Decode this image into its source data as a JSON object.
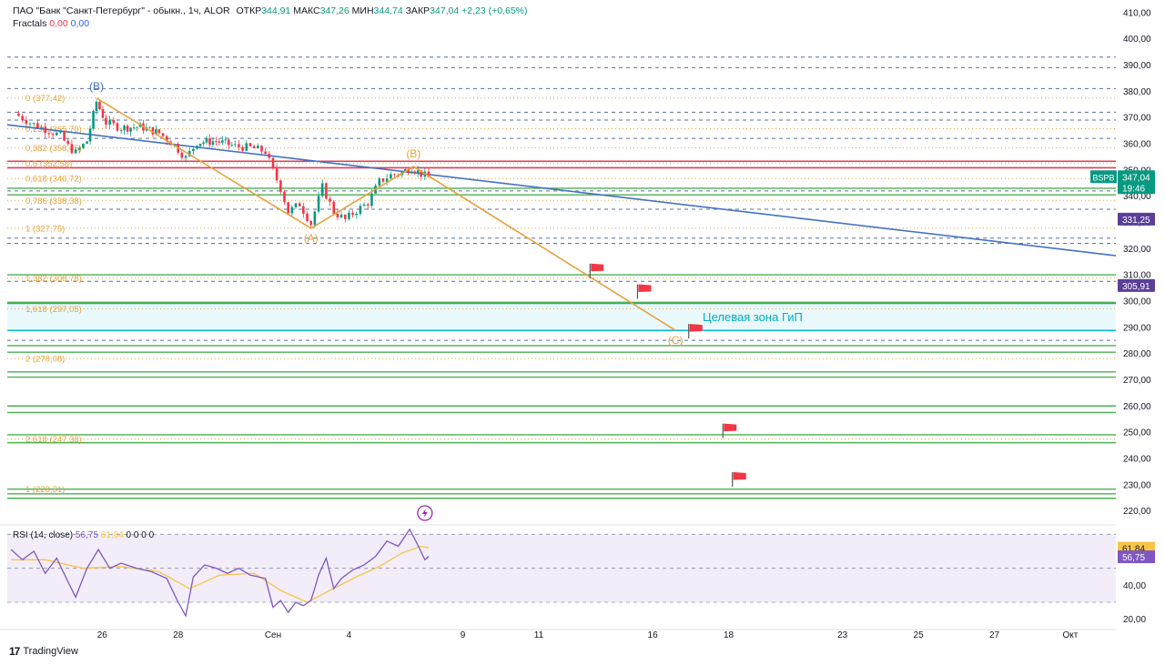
{
  "header": {
    "instrument": "ПАО \"Банк \"Санкт-Петербург\" - обыкн., 1ч, ALOR",
    "open_label": "ОТКР",
    "open": "344,91",
    "high_label": "МАКС",
    "high": "347,26",
    "low_label": "МИН",
    "low": "344,74",
    "close_label": "ЗАКР",
    "close": "347,04",
    "change": "+2,23 (+0,65%)",
    "indicator": "Fractals",
    "indicator_v1": "0,00",
    "indicator_v2": "0,00"
  },
  "brand": {
    "name": "TradingView",
    "logo": "17"
  },
  "colors": {
    "fib": "#e6a23c",
    "trend": "#4472c4",
    "green": "#4caf50",
    "red": "#e53950",
    "zone": "#00bcd4",
    "dash": "#5b6f9a",
    "candle_up": "#089981",
    "candle_down": "#f23645",
    "rsi": "#7e57c2",
    "rsi_ma": "#f7c545"
  },
  "chart_data": {
    "type": "candlestick",
    "symbol": "BSPB",
    "timeframe": "1ч",
    "price_axis": {
      "ticks": [
        410,
        400,
        390,
        380,
        370,
        360,
        350,
        340,
        330,
        320,
        310,
        300,
        290,
        280,
        270,
        260,
        250,
        240,
        230,
        220
      ],
      "tick_labels": [
        "410,00",
        "400,00",
        "390,00",
        "380,00",
        "370,00",
        "360,00",
        "350,00",
        "340,00",
        "330,00",
        "320,00",
        "310,00",
        "300,00",
        "290,00",
        "280,00",
        "270,00",
        "260,00",
        "250,00",
        "240,00",
        "230,00",
        "220,00"
      ],
      "range": [
        215,
        412
      ]
    },
    "x_axis": {
      "labels": [
        "26",
        "28",
        "Сен",
        "4",
        "9",
        "11",
        "16",
        "18",
        "23",
        "25",
        "27",
        "Окт"
      ],
      "positions": [
        2.5,
        4.5,
        7,
        9,
        12,
        14,
        17,
        19,
        22,
        24,
        26,
        28
      ],
      "range": [
        0,
        29.2
      ]
    },
    "price_labels": [
      {
        "text": "BSPB",
        "value": 347.04,
        "time": "19:46",
        "color": "#089981"
      },
      {
        "text": "331,25",
        "value": 331.25,
        "color": "#5b3f97"
      },
      {
        "text": "305,91",
        "value": 305.91,
        "color": "#5b3f97"
      }
    ],
    "fib_levels": [
      {
        "label": "0 (377,42)",
        "value": 377.42
      },
      {
        "label": "0,236 (365,70)",
        "value": 365.7
      },
      {
        "label": "0,382 (358,45)",
        "value": 358.45
      },
      {
        "label": "0,5 (352,58)",
        "value": 352.58
      },
      {
        "label": "0,618 (346,72)",
        "value": 346.72
      },
      {
        "label": "0,786 (338,38)",
        "value": 338.38
      },
      {
        "label": "1 (327,75)",
        "value": 327.75
      },
      {
        "label": "1,382 (308,78)",
        "value": 308.78
      },
      {
        "label": "1,618 (297,05)",
        "value": 297.05
      },
      {
        "label": "2 (278,08)",
        "value": 278.08
      },
      {
        "label": "2,618 (247,38)",
        "value": 247.38
      },
      {
        "label": "1 (228,31)",
        "value": 228.31
      }
    ],
    "dashed_levels": [
      393,
      389,
      381,
      372,
      369,
      362,
      342,
      335,
      324,
      322,
      307.5,
      285
    ],
    "green_levels": [
      343,
      340.5,
      310,
      299.5,
      283,
      280.5,
      273,
      271,
      260,
      257.5,
      249,
      246,
      228.3,
      226.5,
      224.8
    ],
    "red_levels": [
      353.3,
      350.8
    ],
    "target_zone": {
      "label": "Целевая зона ГиП",
      "from": 288.8,
      "to": 299.2
    },
    "trend_line": {
      "from": {
        "t": 0,
        "p": 367.2
      },
      "to": {
        "t": 29.2,
        "p": 317.3
      }
    },
    "wave": {
      "points": [
        {
          "label": "(B)",
          "t": 2.35,
          "p": 377.4
        },
        {
          "label": "(A)",
          "t": 8.0,
          "p": 327.75
        },
        {
          "label": "(B)",
          "t": 10.7,
          "p": 351.3
        },
        {
          "label": "(C)",
          "t": 17.6,
          "p": 288.8
        }
      ]
    },
    "flags": [
      {
        "t": 15.35,
        "p": 311.5
      },
      {
        "t": 16.6,
        "p": 303.6
      },
      {
        "t": 17.95,
        "p": 288.5
      },
      {
        "t": 18.85,
        "p": 250.5
      },
      {
        "t": 19.1,
        "p": 232
      }
    ],
    "price_path": [
      {
        "t": 0.2,
        "p": 371.5
      },
      {
        "t": 0.6,
        "p": 368.0
      },
      {
        "t": 1.0,
        "p": 365.5
      },
      {
        "t": 1.4,
        "p": 363.0
      },
      {
        "t": 1.6,
        "p": 359.0
      },
      {
        "t": 1.8,
        "p": 356.5
      },
      {
        "t": 2.1,
        "p": 361.0
      },
      {
        "t": 2.35,
        "p": 376.0
      },
      {
        "t": 2.6,
        "p": 368.0
      },
      {
        "t": 3.0,
        "p": 366.0
      },
      {
        "t": 3.5,
        "p": 366.5
      },
      {
        "t": 4.0,
        "p": 364.0
      },
      {
        "t": 4.4,
        "p": 359.5
      },
      {
        "t": 4.7,
        "p": 354.5
      },
      {
        "t": 5.0,
        "p": 360.5
      },
      {
        "t": 5.5,
        "p": 361.0
      },
      {
        "t": 6.0,
        "p": 359.0
      },
      {
        "t": 6.4,
        "p": 358.5
      },
      {
        "t": 6.8,
        "p": 357.0
      },
      {
        "t": 7.0,
        "p": 349.5
      },
      {
        "t": 7.2,
        "p": 343.0
      },
      {
        "t": 7.4,
        "p": 334.0
      },
      {
        "t": 7.7,
        "p": 337.0
      },
      {
        "t": 8.0,
        "p": 329.5
      },
      {
        "t": 8.3,
        "p": 343.5
      },
      {
        "t": 8.6,
        "p": 334.0
      },
      {
        "t": 8.9,
        "p": 331.0
      },
      {
        "t": 9.2,
        "p": 334.5
      },
      {
        "t": 9.5,
        "p": 337.5
      },
      {
        "t": 9.8,
        "p": 345.5
      },
      {
        "t": 10.1,
        "p": 348.0
      },
      {
        "t": 10.4,
        "p": 349.0
      },
      {
        "t": 10.65,
        "p": 351.0
      },
      {
        "t": 10.9,
        "p": 348.5
      },
      {
        "t": 11.1,
        "p": 347.0
      }
    ],
    "rsi": {
      "title": "RSI (14, close)",
      "value": "56,75",
      "ma_value": "61,84",
      "extra": "0 0 0 0",
      "axis_labels": [
        "60,00",
        "40,00",
        "20,00"
      ],
      "axis_values": [
        60,
        40,
        20
      ],
      "range": [
        15,
        75
      ],
      "band": [
        30,
        70
      ],
      "points": [
        {
          "t": 0.1,
          "v": 61
        },
        {
          "t": 0.4,
          "v": 55
        },
        {
          "t": 0.7,
          "v": 60
        },
        {
          "t": 1.0,
          "v": 47
        },
        {
          "t": 1.3,
          "v": 56
        },
        {
          "t": 1.6,
          "v": 42
        },
        {
          "t": 1.8,
          "v": 33
        },
        {
          "t": 2.1,
          "v": 50
        },
        {
          "t": 2.4,
          "v": 61
        },
        {
          "t": 2.7,
          "v": 50
        },
        {
          "t": 3.0,
          "v": 53
        },
        {
          "t": 3.4,
          "v": 50
        },
        {
          "t": 3.8,
          "v": 48
        },
        {
          "t": 4.2,
          "v": 44
        },
        {
          "t": 4.5,
          "v": 30
        },
        {
          "t": 4.7,
          "v": 22
        },
        {
          "t": 4.9,
          "v": 45
        },
        {
          "t": 5.2,
          "v": 52
        },
        {
          "t": 5.5,
          "v": 50
        },
        {
          "t": 5.8,
          "v": 47
        },
        {
          "t": 6.1,
          "v": 50
        },
        {
          "t": 6.4,
          "v": 46
        },
        {
          "t": 6.8,
          "v": 44
        },
        {
          "t": 7.0,
          "v": 27
        },
        {
          "t": 7.2,
          "v": 31
        },
        {
          "t": 7.4,
          "v": 24
        },
        {
          "t": 7.6,
          "v": 30
        },
        {
          "t": 7.8,
          "v": 28
        },
        {
          "t": 8.0,
          "v": 31
        },
        {
          "t": 8.2,
          "v": 46
        },
        {
          "t": 8.4,
          "v": 56
        },
        {
          "t": 8.6,
          "v": 38
        },
        {
          "t": 8.8,
          "v": 44
        },
        {
          "t": 9.1,
          "v": 49
        },
        {
          "t": 9.4,
          "v": 52
        },
        {
          "t": 9.7,
          "v": 57
        },
        {
          "t": 10.0,
          "v": 66
        },
        {
          "t": 10.3,
          "v": 63
        },
        {
          "t": 10.6,
          "v": 73
        },
        {
          "t": 10.85,
          "v": 62
        },
        {
          "t": 11.0,
          "v": 55
        },
        {
          "t": 11.1,
          "v": 57
        }
      ],
      "ma_points": [
        {
          "t": 0.1,
          "v": 55
        },
        {
          "t": 1.0,
          "v": 55
        },
        {
          "t": 2.0,
          "v": 50
        },
        {
          "t": 3.0,
          "v": 51
        },
        {
          "t": 4.0,
          "v": 48
        },
        {
          "t": 4.8,
          "v": 38
        },
        {
          "t": 5.6,
          "v": 46
        },
        {
          "t": 6.5,
          "v": 47
        },
        {
          "t": 7.2,
          "v": 37
        },
        {
          "t": 7.9,
          "v": 30
        },
        {
          "t": 8.5,
          "v": 37
        },
        {
          "t": 9.2,
          "v": 45
        },
        {
          "t": 9.8,
          "v": 51
        },
        {
          "t": 10.4,
          "v": 59
        },
        {
          "t": 10.9,
          "v": 63
        },
        {
          "t": 11.1,
          "v": 62
        }
      ]
    }
  }
}
